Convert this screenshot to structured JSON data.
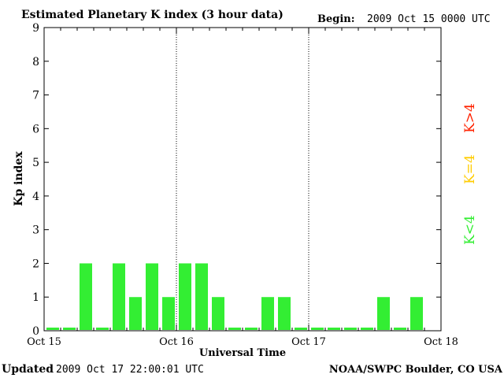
{
  "header": {
    "title": "Estimated Planetary K index (3 hour data)",
    "begin_label": "Begin:",
    "begin_value": "2009 Oct 15 0000 UTC"
  },
  "footer": {
    "updated_label": "Updated",
    "updated_value": "2009 Oct 17 22:00:01 UTC",
    "source": "NOAA/SWPC Boulder, CO USA"
  },
  "legend": {
    "items": [
      {
        "label": "K<4",
        "color": "#33ee33"
      },
      {
        "label": "K=4",
        "color": "#ffcc00"
      },
      {
        "label": "K>4",
        "color": "#ff2200"
      }
    ]
  },
  "chart_data": {
    "type": "bar",
    "title": "Estimated Planetary K index (3 hour data)",
    "xlabel": "Universal Time",
    "ylabel": "Kp index",
    "ylim": [
      0,
      9
    ],
    "yticks": [
      "0",
      "1",
      "2",
      "3",
      "4",
      "5",
      "6",
      "7",
      "8",
      "9"
    ],
    "xticks": [
      "Oct 15",
      "Oct 16",
      "Oct 17",
      "Oct 18"
    ],
    "interval_hours": 3,
    "grid": "vertical dotted lines at day boundaries",
    "bar_color": "#33ee33",
    "values": [
      0,
      0,
      2,
      0,
      2,
      1,
      2,
      1,
      2,
      2,
      1,
      0,
      0,
      1,
      1,
      0,
      0,
      0,
      0,
      0,
      1,
      0,
      1
    ]
  }
}
